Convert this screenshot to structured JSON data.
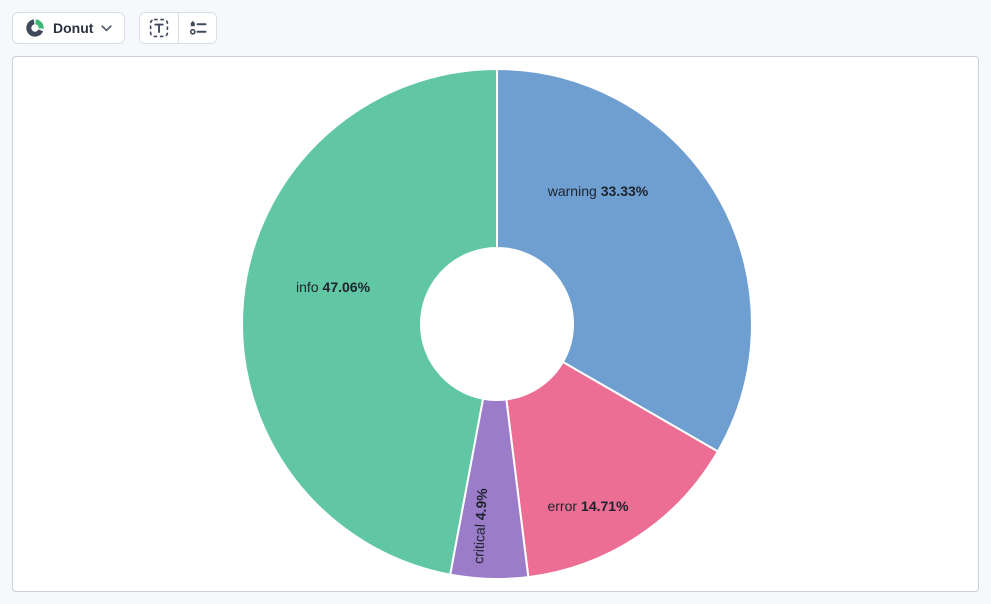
{
  "toolbar": {
    "chart_type_selector": {
      "label": "Donut",
      "leading_icon": "donut-chart-icon",
      "trailing_icon": "chevron-down-icon"
    },
    "labels_button": {
      "icon": "text-label-frame-icon"
    },
    "legend_button": {
      "icon": "legend-list-icon"
    }
  },
  "chart_data": {
    "type": "pie",
    "variant": "donut",
    "direction": "clockwise",
    "start_angle_deg": 0,
    "inner_radius_ratio": 0.3,
    "legend": "none",
    "series": [
      {
        "name": "warning",
        "value_pct": 33.33,
        "pct_text": "33.33%",
        "color": "#6f9fd1"
      },
      {
        "name": "error",
        "value_pct": 14.71,
        "pct_text": "14.71%",
        "color": "#ec6e94"
      },
      {
        "name": "critical",
        "value_pct": 4.9,
        "pct_text": "4.9%",
        "color": "#9b7cc9"
      },
      {
        "name": "info",
        "value_pct": 47.06,
        "pct_text": "47.06%",
        "color": "#61c6a4"
      }
    ]
  },
  "colors": {
    "page_bg": "#f6f8fb",
    "panel_bg": "#ffffff",
    "panel_border": "#c9d1dd",
    "button_border": "#d8dde6",
    "toolbar_icon": "#414a5c",
    "brand_green": "#3cb878",
    "label_text": "#1d222b",
    "slice_separator": "#ffffff"
  }
}
